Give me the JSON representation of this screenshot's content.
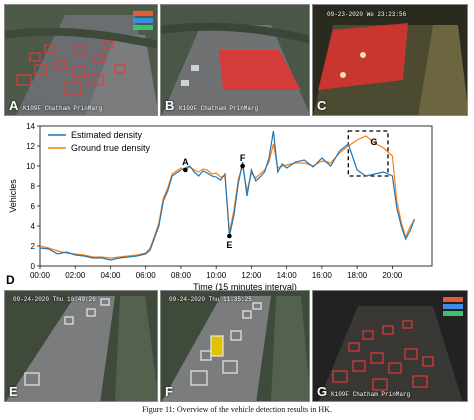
{
  "top_panels": [
    {
      "letter": "A",
      "timestamp": "",
      "footer": "K109F Chatham PrinMarg"
    },
    {
      "letter": "B",
      "timestamp": "",
      "footer": "K109F Chatham PrinMarg"
    },
    {
      "letter": "C",
      "timestamp": "09-23-2020 We 23:23:56",
      "footer": ""
    }
  ],
  "bottom_panels": [
    {
      "letter": "E",
      "timestamp": "09-24-2020 Thu 10:49:26",
      "footer": ""
    },
    {
      "letter": "F",
      "timestamp": "09-24-2020 Thu 11:35:25",
      "footer": ""
    },
    {
      "letter": "G",
      "timestamp": "",
      "footer": "K109F Chatham PrinMarg"
    }
  ],
  "caption": "Figure 11: Overview of the vehicle detection results in HK.",
  "chart_data": {
    "type": "line",
    "panel_letter": "D",
    "xlabel": "Time (15 minutes interval)",
    "ylabel": "Vehicles",
    "xlim": [
      0,
      22.25
    ],
    "ylim": [
      0,
      14
    ],
    "yticks": [
      0,
      2,
      4,
      6,
      8,
      10,
      12,
      14
    ],
    "xticks": [
      {
        "value": 0,
        "label": "00:00"
      },
      {
        "value": 2,
        "label": "02:00"
      },
      {
        "value": 4,
        "label": "04:00"
      },
      {
        "value": 6,
        "label": "06:00"
      },
      {
        "value": 8,
        "label": "08:00"
      },
      {
        "value": 10,
        "label": "10:00"
      },
      {
        "value": 12,
        "label": "12:00"
      },
      {
        "value": 14,
        "label": "14:00"
      },
      {
        "value": 16,
        "label": "16:00"
      },
      {
        "value": 18,
        "label": "18:00"
      },
      {
        "value": 20,
        "label": "20:00"
      }
    ],
    "grid": false,
    "legend_position": "top-left",
    "colors": {
      "estimated": "#1f77b4",
      "ground": "#ff7f0e"
    },
    "series": [
      {
        "name": "Estimated density",
        "color": "#1f77b4",
        "points": [
          [
            0,
            1.8
          ],
          [
            0.5,
            1.7
          ],
          [
            1,
            1.2
          ],
          [
            1.5,
            1.4
          ],
          [
            2,
            1.1
          ],
          [
            2.5,
            1.0
          ],
          [
            3,
            0.8
          ],
          [
            3.5,
            0.8
          ],
          [
            4,
            0.6
          ],
          [
            4.5,
            0.8
          ],
          [
            5,
            0.9
          ],
          [
            5.5,
            1.0
          ],
          [
            6,
            1.2
          ],
          [
            6.25,
            1.6
          ],
          [
            6.5,
            2.8
          ],
          [
            6.75,
            4.0
          ],
          [
            7,
            6.5
          ],
          [
            7.25,
            7.5
          ],
          [
            7.5,
            9.0
          ],
          [
            7.75,
            9.3
          ],
          [
            8,
            9.6
          ],
          [
            8.25,
            9.8
          ],
          [
            8.5,
            10.0
          ],
          [
            8.75,
            9.4
          ],
          [
            9,
            9.0
          ],
          [
            9.25,
            9.5
          ],
          [
            9.5,
            9.3
          ],
          [
            9.75,
            9.0
          ],
          [
            10,
            8.9
          ],
          [
            10.25,
            8.6
          ],
          [
            10.5,
            9.2
          ],
          [
            10.75,
            3.0
          ],
          [
            11,
            5.0
          ],
          [
            11.25,
            8.2
          ],
          [
            11.5,
            10.4
          ],
          [
            11.75,
            7.0
          ],
          [
            12,
            9.6
          ],
          [
            12.25,
            8.5
          ],
          [
            12.5,
            8.9
          ],
          [
            12.75,
            9.4
          ],
          [
            13,
            10.8
          ],
          [
            13.25,
            13.5
          ],
          [
            13.5,
            9.4
          ],
          [
            13.75,
            10.2
          ],
          [
            14,
            9.8
          ],
          [
            14.5,
            10.4
          ],
          [
            15,
            10.6
          ],
          [
            15.5,
            9.9
          ],
          [
            16,
            10.8
          ],
          [
            16.5,
            10.0
          ],
          [
            17,
            11.5
          ],
          [
            17.5,
            12.2
          ],
          [
            18,
            9.6
          ],
          [
            18.5,
            9.0
          ],
          [
            19,
            9.2
          ],
          [
            19.5,
            9.4
          ],
          [
            20,
            9.0
          ],
          [
            20.25,
            5.8
          ],
          [
            20.5,
            4.0
          ],
          [
            20.75,
            2.7
          ],
          [
            21,
            3.5
          ],
          [
            21.25,
            4.7
          ]
        ]
      },
      {
        "name": "Ground true density",
        "color": "#ff7f0e",
        "points": [
          [
            0,
            2.0
          ],
          [
            0.5,
            1.8
          ],
          [
            1,
            1.5
          ],
          [
            1.5,
            1.3
          ],
          [
            2,
            1.2
          ],
          [
            2.5,
            1.1
          ],
          [
            3,
            0.9
          ],
          [
            3.5,
            0.9
          ],
          [
            4,
            0.8
          ],
          [
            4.5,
            0.9
          ],
          [
            5,
            1.0
          ],
          [
            5.5,
            1.1
          ],
          [
            6,
            1.3
          ],
          [
            6.25,
            1.8
          ],
          [
            6.5,
            3.0
          ],
          [
            6.75,
            4.3
          ],
          [
            7,
            6.8
          ],
          [
            7.25,
            7.8
          ],
          [
            7.5,
            9.2
          ],
          [
            7.75,
            9.5
          ],
          [
            8,
            9.8
          ],
          [
            8.25,
            9.6
          ],
          [
            8.5,
            9.9
          ],
          [
            8.75,
            9.6
          ],
          [
            9,
            9.4
          ],
          [
            9.25,
            9.7
          ],
          [
            9.5,
            9.6
          ],
          [
            9.75,
            9.2
          ],
          [
            10,
            9.3
          ],
          [
            10.25,
            8.9
          ],
          [
            10.5,
            9.0
          ],
          [
            10.75,
            3.4
          ],
          [
            11,
            5.5
          ],
          [
            11.25,
            8.6
          ],
          [
            11.5,
            10.0
          ],
          [
            11.75,
            7.5
          ],
          [
            12,
            9.3
          ],
          [
            12.25,
            8.8
          ],
          [
            12.5,
            9.2
          ],
          [
            12.75,
            9.6
          ],
          [
            13,
            10.4
          ],
          [
            13.25,
            12.2
          ],
          [
            13.5,
            9.8
          ],
          [
            13.75,
            10.0
          ],
          [
            14,
            10.1
          ],
          [
            14.5,
            10.3
          ],
          [
            15,
            10.3
          ],
          [
            15.5,
            10.0
          ],
          [
            16,
            10.5
          ],
          [
            16.5,
            10.3
          ],
          [
            17,
            11.3
          ],
          [
            17.5,
            12.0
          ],
          [
            18,
            12.6
          ],
          [
            18.5,
            13.0
          ],
          [
            19,
            12.3
          ],
          [
            19.5,
            11.8
          ],
          [
            20,
            11.0
          ],
          [
            20.25,
            6.5
          ],
          [
            20.5,
            4.4
          ],
          [
            20.75,
            2.9
          ],
          [
            21,
            3.9
          ],
          [
            21.25,
            4.6
          ]
        ]
      }
    ],
    "annotations": [
      {
        "label": "A",
        "x": 8.25,
        "y": 9.6,
        "marker": true
      },
      {
        "label": "E",
        "x": 10.75,
        "y": 3.0,
        "marker": true
      },
      {
        "label": "F",
        "x": 11.5,
        "y": 10.0,
        "marker": true
      },
      {
        "label": "G",
        "x": 18.5,
        "y": 12.3,
        "marker": false
      }
    ],
    "highlight_box": {
      "x0": 17.5,
      "x1": 19.75,
      "y0": 9.0,
      "y1": 13.5
    }
  }
}
